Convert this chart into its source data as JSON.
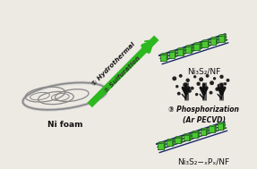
{
  "bg_color": "#ede9e3",
  "ni_foam_label": "Ni foam",
  "arrow_label_1": "① Hydrothermal",
  "arrow_label_2": "② Sulfuration",
  "top_material_label": "Ni₃S₂/NF",
  "step3_label": "③ Phosphorization\n(Ar PECVD)",
  "bottom_material_label": "Ni₃S₂−ₓPₓ/NF",
  "arrow_color": "#2db820",
  "dark_arrow_color": "#111111",
  "foam_edge_color": "#aaaaaa",
  "nanosheet_green": "#4dc832",
  "nanosheet_dark": "#1a6010",
  "nanosheet_mid": "#2a8a1a",
  "wire_color": "#1a2a6a",
  "particle_color": "#222222",
  "text_color": "#111111",
  "label_fontsize": 6.5,
  "step_fontsize": 5.5
}
